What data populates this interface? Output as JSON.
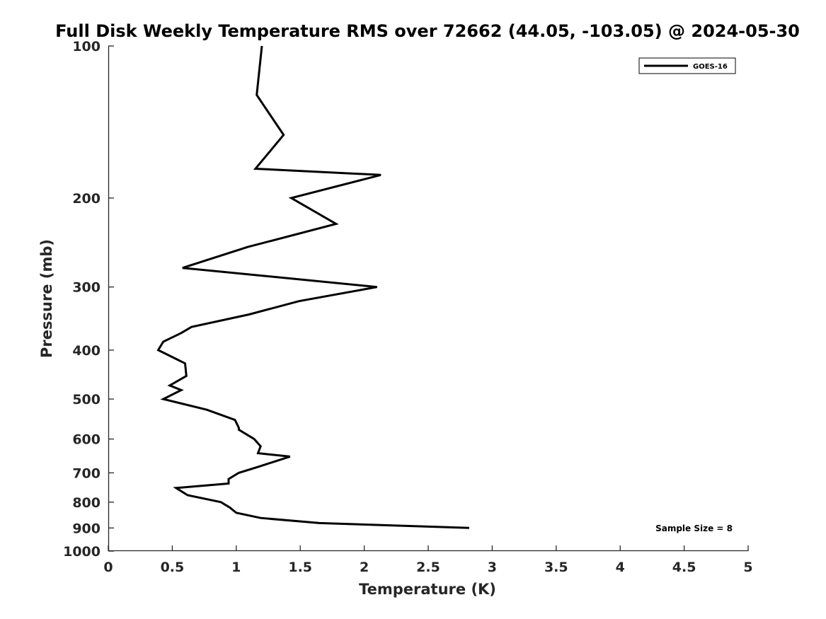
{
  "chart_data": {
    "type": "line",
    "title": "Full Disk Weekly Temperature RMS over 72662 (44.05, -103.05) @ 2024-05-30",
    "xlabel": "Temperature (K)",
    "ylabel": "Pressure (mb)",
    "xlim": [
      0,
      5
    ],
    "ylim": [
      100,
      1000
    ],
    "y_scale": "log",
    "y_reversed": true,
    "x_ticks": [
      "0",
      "0.5",
      "1",
      "1.5",
      "2",
      "2.5",
      "3",
      "3.5",
      "4",
      "4.5",
      "5"
    ],
    "y_ticks": [
      "100",
      "200",
      "300",
      "400",
      "500",
      "600",
      "700",
      "800",
      "900",
      "1000"
    ],
    "grid": false,
    "legend_position": "top-right",
    "series": [
      {
        "name": "GOES-16",
        "color": "#000000",
        "points": [
          [
            1.2,
            100
          ],
          [
            1.16,
            125
          ],
          [
            1.37,
            150
          ],
          [
            1.15,
            175
          ],
          [
            2.13,
            180
          ],
          [
            1.43,
            200
          ],
          [
            1.78,
            225
          ],
          [
            1.09,
            250
          ],
          [
            0.58,
            275
          ],
          [
            2.1,
            300
          ],
          [
            1.49,
            320
          ],
          [
            1.1,
            340
          ],
          [
            0.65,
            360
          ],
          [
            0.57,
            370
          ],
          [
            0.43,
            385
          ],
          [
            0.39,
            400
          ],
          [
            0.6,
            425
          ],
          [
            0.61,
            450
          ],
          [
            0.48,
            470
          ],
          [
            0.57,
            480
          ],
          [
            0.43,
            500
          ],
          [
            0.77,
            525
          ],
          [
            0.99,
            550
          ],
          [
            1.02,
            570
          ],
          [
            1.02,
            575
          ],
          [
            1.14,
            600
          ],
          [
            1.19,
            620
          ],
          [
            1.17,
            640
          ],
          [
            1.42,
            650
          ],
          [
            1.18,
            680
          ],
          [
            1.02,
            700
          ],
          [
            0.94,
            720
          ],
          [
            0.94,
            735
          ],
          [
            0.53,
            750
          ],
          [
            0.62,
            775
          ],
          [
            0.88,
            800
          ],
          [
            0.95,
            820
          ],
          [
            1.0,
            840
          ],
          [
            1.19,
            860
          ],
          [
            1.65,
            880
          ],
          [
            2.82,
            900
          ]
        ]
      }
    ],
    "annotation": "Sample Size = 8"
  }
}
